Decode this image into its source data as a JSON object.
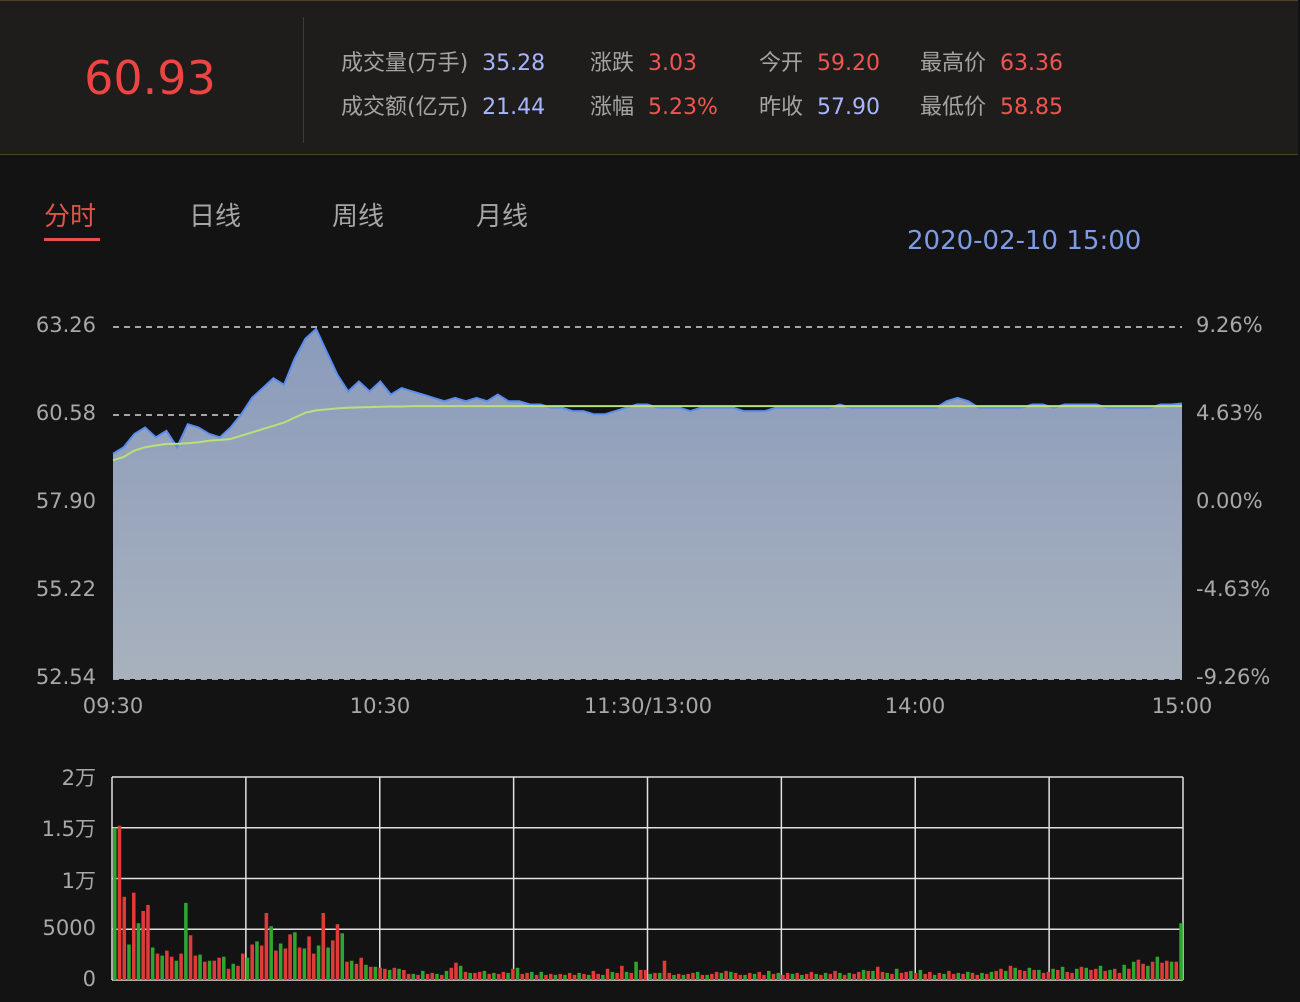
{
  "header": {
    "price": "60.93",
    "stats": [
      {
        "label": "成交量(万手)",
        "value": "35.28",
        "color": "blue"
      },
      {
        "label": "成交额(亿元)",
        "value": "21.44",
        "color": "blue"
      },
      {
        "label": "涨跌",
        "value": "3.03",
        "color": "red"
      },
      {
        "label": "涨幅",
        "value": "5.23%",
        "color": "red"
      },
      {
        "label": "今开",
        "value": "59.20",
        "color": "red"
      },
      {
        "label": "昨收",
        "value": "57.90",
        "color": "blue"
      },
      {
        "label": "最高价",
        "value": "63.36",
        "color": "red"
      },
      {
        "label": "最低价",
        "value": "58.85",
        "color": "red"
      }
    ]
  },
  "tabs": [
    {
      "label": "分时",
      "active": true
    },
    {
      "label": "日线",
      "active": false
    },
    {
      "label": "周线",
      "active": false
    },
    {
      "label": "月线",
      "active": false
    }
  ],
  "datetime": "2020-02-10 15:00",
  "colors": {
    "up": "#e03b3b",
    "down": "#2ea52e",
    "price_line": "#5b8def",
    "avg_line": "#b9e07a",
    "accent": "#e2514b"
  },
  "chart_data": [
    {
      "type": "area",
      "title": "",
      "y_labels_left": [
        "63.26",
        "60.58",
        "57.90",
        "55.22",
        "52.54"
      ],
      "y_labels_right": [
        "9.26%",
        "4.63%",
        "0.00%",
        "-4.63%",
        "-9.26%"
      ],
      "ylim": [
        52.54,
        63.26
      ],
      "x_ticks": [
        "09:30",
        "10:30",
        "11:30/13:00",
        "14:00",
        "15:00"
      ],
      "price": [
        59.4,
        59.6,
        60.0,
        60.2,
        59.9,
        60.1,
        59.6,
        60.3,
        60.2,
        60.0,
        59.9,
        60.2,
        60.6,
        61.1,
        61.4,
        61.7,
        61.5,
        62.3,
        62.9,
        63.2,
        62.5,
        61.8,
        61.3,
        61.6,
        61.3,
        61.6,
        61.2,
        61.4,
        61.3,
        61.2,
        61.1,
        61.0,
        61.1,
        61.0,
        61.1,
        61.0,
        61.2,
        61.0,
        61.0,
        60.9,
        60.9,
        60.8,
        60.8,
        60.7,
        60.7,
        60.6,
        60.6,
        60.7,
        60.8,
        60.9,
        60.9,
        60.8,
        60.8,
        60.8,
        60.7,
        60.8,
        60.8,
        60.8,
        60.8,
        60.7,
        60.7,
        60.7,
        60.8,
        60.8,
        60.8,
        60.8,
        60.8,
        60.8,
        60.9,
        60.8,
        60.8,
        60.8,
        60.8,
        60.8,
        60.8,
        60.8,
        60.8,
        60.8,
        61.0,
        61.1,
        61.0,
        60.8,
        60.8,
        60.8,
        60.8,
        60.8,
        60.9,
        60.9,
        60.8,
        60.9,
        60.9,
        60.9,
        60.9,
        60.8,
        60.8,
        60.8,
        60.8,
        60.8,
        60.9,
        60.9,
        60.93
      ],
      "avg": [
        59.2,
        59.3,
        59.5,
        59.6,
        59.65,
        59.7,
        59.7,
        59.72,
        59.75,
        59.8,
        59.82,
        59.85,
        59.95,
        60.05,
        60.15,
        60.25,
        60.35,
        60.5,
        60.65,
        60.72,
        60.75,
        60.78,
        60.8,
        60.81,
        60.82,
        60.83,
        60.84,
        60.84,
        60.85,
        60.85,
        60.85,
        60.85,
        60.85,
        60.85,
        60.85,
        60.85,
        60.85,
        60.85,
        60.85,
        60.85,
        60.85,
        60.85,
        60.85,
        60.85,
        60.85,
        60.85,
        60.85,
        60.85,
        60.85,
        60.85,
        60.85,
        60.85,
        60.85,
        60.85,
        60.85,
        60.85,
        60.85,
        60.85,
        60.85,
        60.85,
        60.85,
        60.85,
        60.85,
        60.85,
        60.85,
        60.85,
        60.85,
        60.85,
        60.85,
        60.85,
        60.85,
        60.85,
        60.85,
        60.85,
        60.85,
        60.85,
        60.85,
        60.85,
        60.85,
        60.85,
        60.85,
        60.85,
        60.85,
        60.85,
        60.85,
        60.85,
        60.85,
        60.85,
        60.85,
        60.85,
        60.85,
        60.85,
        60.85,
        60.85,
        60.85,
        60.85,
        60.85,
        60.85,
        60.85,
        60.85,
        60.85
      ]
    },
    {
      "type": "bar",
      "title": "",
      "y_labels": [
        "2万",
        "1.5万",
        "1万",
        "5000",
        "0"
      ],
      "ylim": [
        0,
        20000
      ],
      "volumes": [
        15000,
        15200,
        8200,
        3500,
        8600,
        5600,
        6800,
        7400,
        3200,
        2600,
        2400,
        2900,
        2300,
        1900,
        2600,
        7600,
        4400,
        2400,
        2500,
        1800,
        1900,
        1900,
        2200,
        2300,
        1100,
        1600,
        1400,
        2600,
        2200,
        3500,
        3800,
        3400,
        6600,
        5300,
        2900,
        3600,
        3100,
        4500,
        4700,
        3200,
        3100,
        4300,
        2600,
        3400,
        6600,
        3200,
        3900,
        5500,
        4600,
        1800,
        1900,
        1600,
        2200,
        1500,
        1300,
        1300,
        1200,
        1100,
        1000,
        1200,
        1100,
        1000,
        600,
        600,
        500,
        900,
        600,
        700,
        600,
        500,
        900,
        1200,
        1700,
        1400,
        800,
        700,
        700,
        800,
        900,
        600,
        700,
        600,
        800,
        700,
        1100,
        1200,
        600,
        700,
        800,
        500,
        800,
        500,
        600,
        500,
        600,
        500,
        700,
        500,
        700,
        600,
        500,
        900,
        600,
        500,
        1100,
        800,
        700,
        1400,
        800,
        700,
        1800,
        1000,
        1000,
        600,
        700,
        700,
        1900,
        700,
        500,
        600,
        500,
        600,
        700,
        800,
        500,
        500,
        600,
        800,
        700,
        900,
        800,
        700,
        500,
        500,
        700,
        600,
        800,
        500,
        900,
        600,
        700,
        500,
        700,
        600,
        700,
        500,
        600,
        800,
        600,
        500,
        700,
        600,
        900,
        700,
        500,
        700,
        600,
        800,
        1000,
        900,
        900,
        1300,
        800,
        700,
        600,
        1100,
        700,
        800,
        900,
        700,
        1000,
        600,
        800,
        500,
        700,
        600,
        900,
        600,
        700,
        600,
        800,
        700,
        500,
        700,
        600,
        800,
        900,
        1100,
        900,
        1400,
        1200,
        1000,
        900,
        1200,
        1000,
        1000,
        700,
        800,
        1100,
        1000,
        1300,
        800,
        700,
        1100,
        1300,
        1200,
        1000,
        1100,
        1400,
        900,
        1000,
        1100,
        700,
        1500,
        1100,
        1800,
        2000,
        1600,
        1400,
        1800,
        2300,
        1700,
        1900,
        1800,
        1800,
        5600
      ],
      "colors": "up_down_mixed"
    }
  ]
}
